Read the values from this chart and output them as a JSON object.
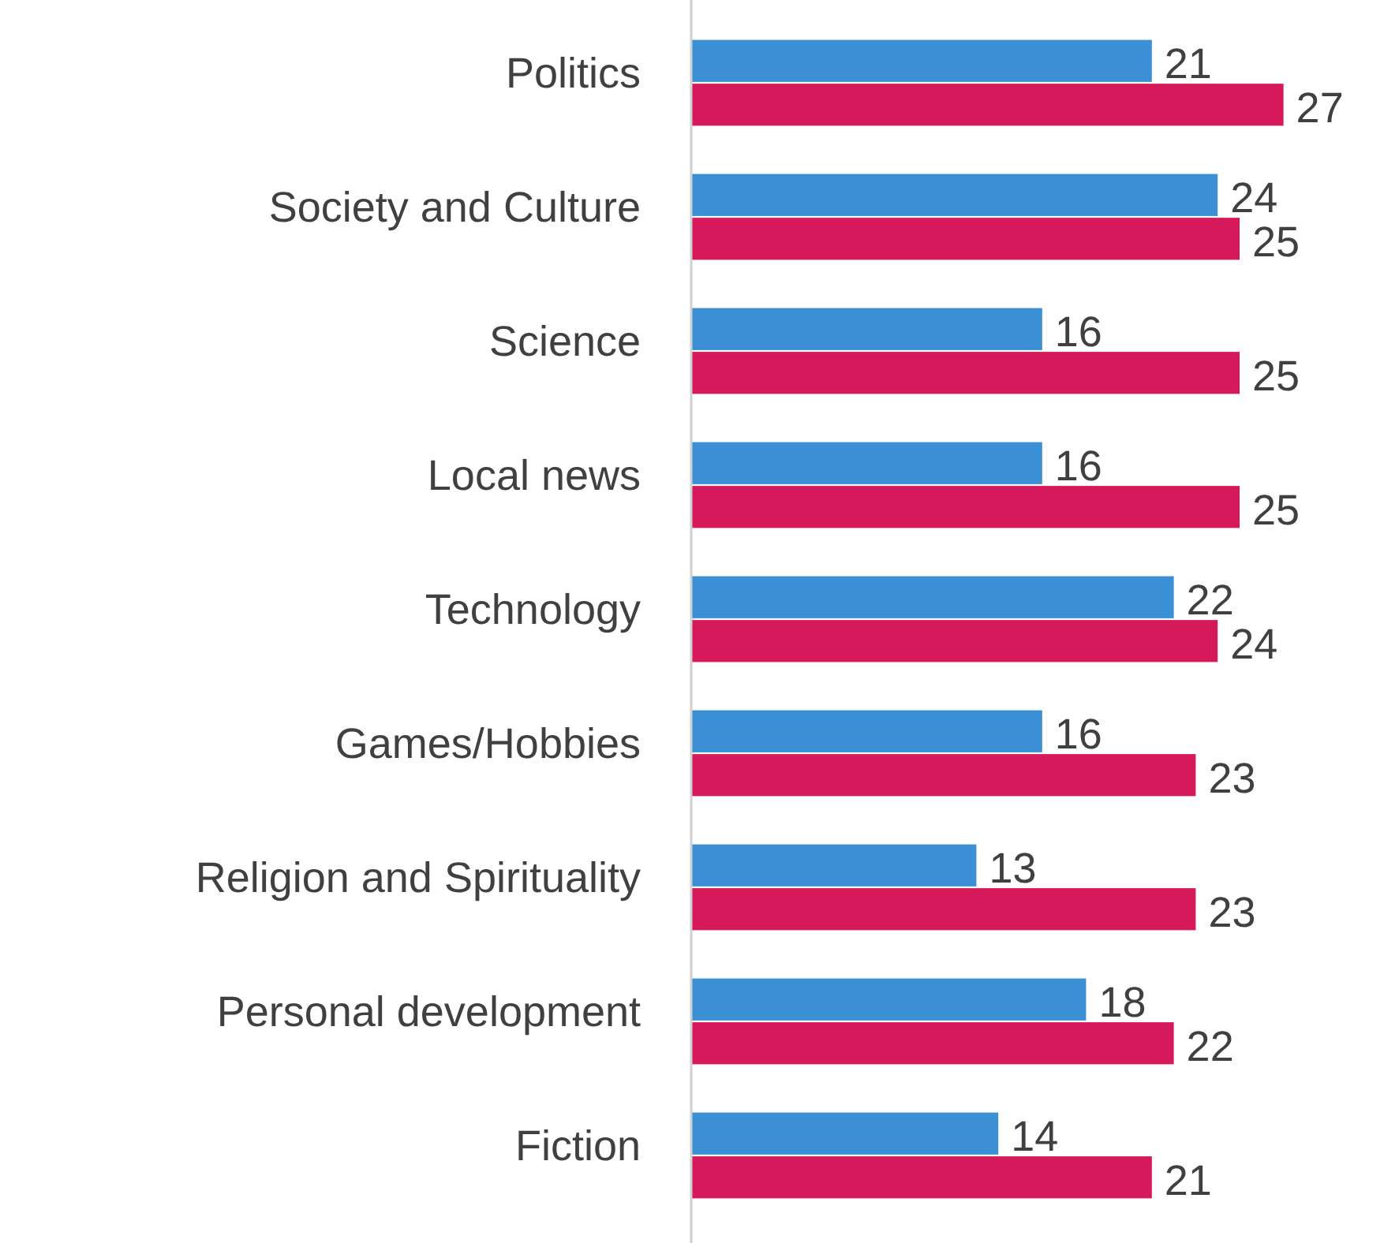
{
  "chart_data": {
    "type": "bar",
    "orientation": "horizontal",
    "categories": [
      "Politics",
      "Society and Culture",
      "Science",
      "Local news",
      "Technology",
      "Games/Hobbies",
      "Religion and Spirituality",
      "Personal development",
      "Fiction"
    ],
    "series": [
      {
        "color": "#3b8fd5",
        "values": [
          21,
          24,
          16,
          16,
          22,
          16,
          13,
          18,
          14
        ]
      },
      {
        "color": "#d6195a",
        "values": [
          27,
          25,
          25,
          25,
          24,
          23,
          23,
          22,
          21
        ]
      }
    ],
    "data_labels": true
  }
}
